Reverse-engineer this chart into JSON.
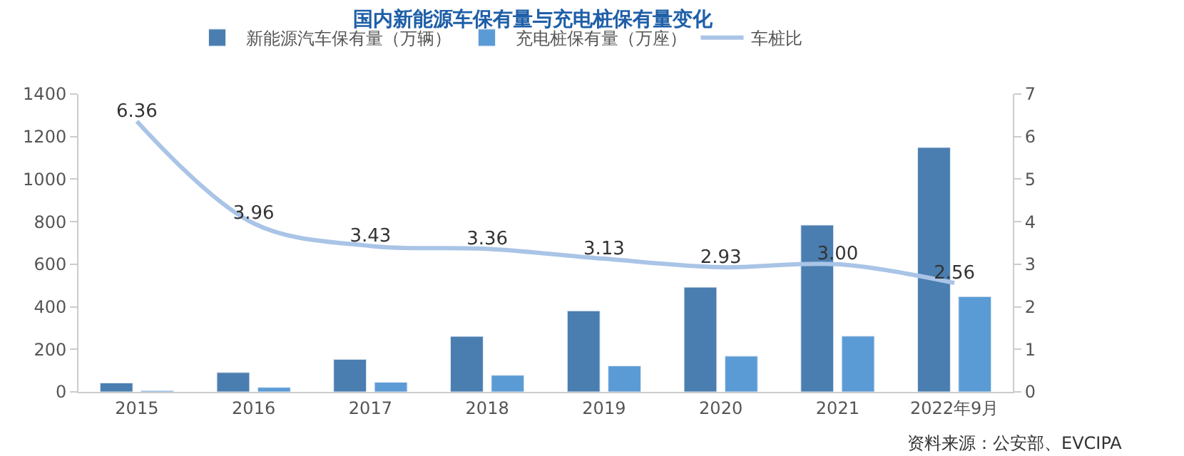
{
  "chart_data": {
    "type": "bar",
    "title": "国内新能源车保有量与充电桩保有量变化",
    "categories": [
      "2015",
      "2016",
      "2017",
      "2018",
      "2019",
      "2020",
      "2021",
      "2022年9月"
    ],
    "series": [
      {
        "name": "新能源汽车保有量（万辆）",
        "color": "#4a7eb0",
        "values": [
          42,
          91,
          153,
          261,
          381,
          492,
          784,
          1149
        ]
      },
      {
        "name": "充电桩保有量（万座）",
        "color": "#5b9bd5",
        "values": [
          6,
          21,
          45,
          78,
          122,
          168,
          262,
          448
        ]
      },
      {
        "name": "车桩比",
        "type": "line",
        "axis": "y2",
        "color": "#a9c4e6",
        "values": [
          6.36,
          3.96,
          3.43,
          3.36,
          3.13,
          2.93,
          3.0,
          2.56
        ],
        "value_labels": [
          "6.36",
          "3.96",
          "3.43",
          "3.36",
          "3.13",
          "2.93",
          "3.00",
          "2.56"
        ]
      }
    ],
    "ylim": [
      0,
      1400
    ],
    "yticks": [
      0,
      200,
      400,
      600,
      800,
      1000,
      1200,
      1400
    ],
    "y2lim": [
      0,
      7
    ],
    "y2ticks": [
      0,
      1,
      2,
      3,
      4,
      5,
      6,
      7
    ],
    "legend": "top",
    "annotations": [
      "资料来源：公安部、EVCIPA"
    ]
  }
}
